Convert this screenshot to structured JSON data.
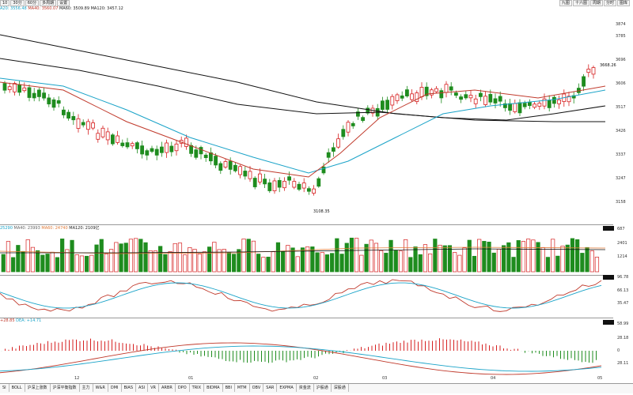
{
  "toolbar": {
    "left": [
      "10",
      "30分",
      "60分",
      "多周期",
      "设置"
    ],
    "right": [
      "九图",
      "十六图",
      "周期",
      "分时",
      "图库"
    ]
  },
  "ma_legend": {
    "ma20": "A20: 3556.48",
    "ma40": "MA40: 3560.07",
    "ma60": "MA60: 3509.89",
    "ma120": "MA120: 3457.12"
  },
  "vol_legend": {
    "ma20": "25290",
    "ma40": "MA40: 23993",
    "ma60": "MA60: 24740",
    "ma120": "MA120: 2109亿"
  },
  "macd_legend": {
    "dif": "+28.85",
    "dea": "DEA: +14.71"
  },
  "price_axis": [
    "3874",
    "3785",
    "3696",
    "3606",
    "3517",
    "3426",
    "3337",
    "3247",
    "3158"
  ],
  "vol_axis": [
    "687",
    "2401",
    "1214"
  ],
  "kdj_axis": [
    "96.78",
    "66.13",
    "35.47"
  ],
  "macd_axis": [
    "58.99",
    "28.18",
    "0",
    "28.11"
  ],
  "date_labels": [
    "12",
    "01",
    "02",
    "03",
    "04",
    "05"
  ],
  "annotations": {
    "high": "3668.26",
    "low": "3108.35"
  },
  "bottom_tabs": [
    "SI",
    "BOLL",
    "沪深上涨数",
    "沪深平衡指数",
    "主力",
    "W&R",
    "DMI",
    "BIAS",
    "ASI",
    "VR",
    "ARBR",
    "DPO",
    "TRIX",
    "BIDMA",
    "BBI",
    "MTM",
    "OBV",
    "SAR",
    "EXPMA",
    "资金流",
    "沪股通",
    "深股通"
  ],
  "colors": {
    "up": "#d62020",
    "down": "#1e8c1e",
    "ma20": "#1aa3c8",
    "ma_red": "#c0392b",
    "ma_black": "#111111"
  }
}
